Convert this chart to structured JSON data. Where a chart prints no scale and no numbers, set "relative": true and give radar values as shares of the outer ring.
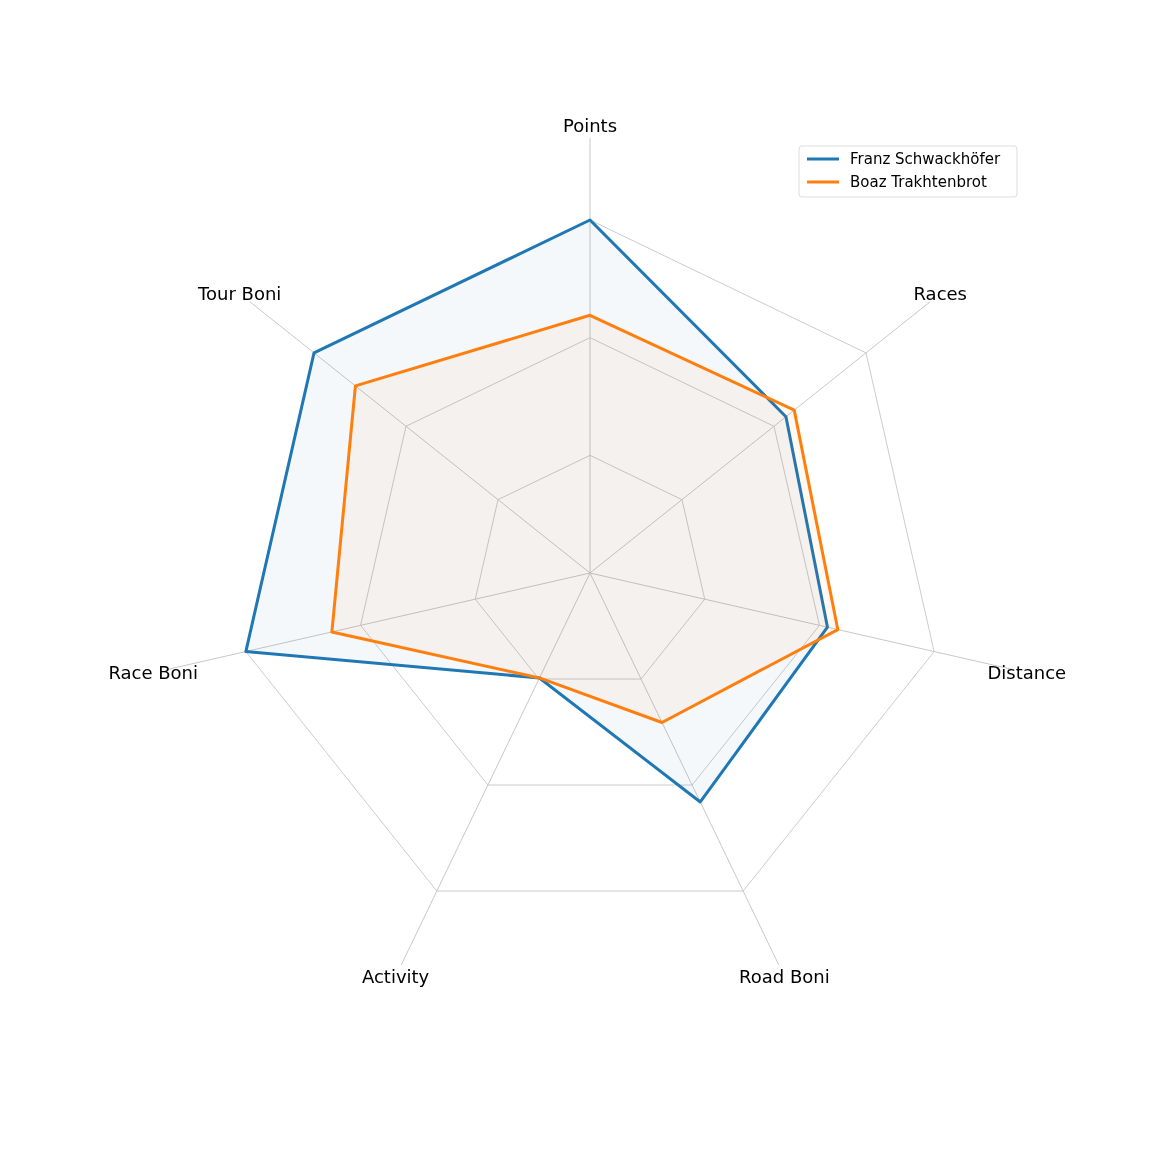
{
  "chart_data": {
    "type": "radar",
    "relative": true,
    "categories": [
      "Points",
      "Races",
      "Distance",
      "Road Boni",
      "Activity",
      "Race Boni",
      "Tour Boni"
    ],
    "series": [
      {
        "name": "Franz Schwackhöfer",
        "color": "#1f77b4",
        "values": [
          1.0,
          0.71,
          0.69,
          0.72,
          0.33,
          1.0,
          1.0
        ]
      },
      {
        "name": "Boaz Trakhtenbrot",
        "color": "#ff7f0e",
        "values": [
          0.73,
          0.74,
          0.72,
          0.47,
          0.33,
          0.75,
          0.85
        ]
      }
    ],
    "grid": true,
    "legend": "top right"
  }
}
